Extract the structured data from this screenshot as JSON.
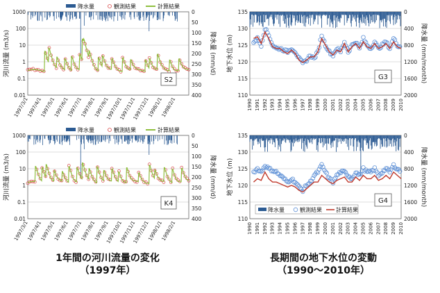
{
  "captions": {
    "left_line1": "1年間の河川流量の変化",
    "left_line2": "（1997年）",
    "right_line1": "長期間の地下水位の変動",
    "right_line2": "（1990～2010年）"
  },
  "colors": {
    "rain": "#2b5a92",
    "observed": "#d94a4a",
    "calc_flow": "#8fbf3f",
    "gw_observed": "#5c8fd6",
    "gw_calc": "#c0392b"
  },
  "chart_data": [
    {
      "id": "S2",
      "type": "line",
      "panel_label": "S2",
      "title": "",
      "ylabel": "河川流量 (m3/s)",
      "y2label": "降水量 (mm/d)",
      "ylim": [
        0.01,
        1000
      ],
      "yscale": "log",
      "yticks": [
        "1000",
        "100",
        "10",
        "1",
        "0.1",
        "0.01"
      ],
      "y2lim": [
        0,
        400
      ],
      "y2ticks": [
        "0",
        "50",
        "100",
        "150",
        "200",
        "250",
        "300",
        "350",
        "400"
      ],
      "xticks": [
        "1997/3/1",
        "1997/4/1",
        "1997/5/1",
        "1997/6/1",
        "1997/7/1",
        "1997/8/1",
        "1997/9/1",
        "1997/10/1",
        "1997/11/1",
        "1997/12/1",
        "1998/1/1",
        "1998/2/1"
      ],
      "legend": [
        "降水量",
        "観測結果",
        "計算結果"
      ],
      "base_flow": 0.3,
      "peaks": [
        {
          "month": 1.3,
          "value": 4
        },
        {
          "month": 1.6,
          "value": 6
        },
        {
          "month": 2.2,
          "value": 1.5
        },
        {
          "month": 2.8,
          "value": 1.2
        },
        {
          "month": 3.3,
          "value": 1.8
        },
        {
          "month": 3.9,
          "value": 2.5
        },
        {
          "month": 4.1,
          "value": 22
        },
        {
          "month": 4.2,
          "value": 10
        },
        {
          "month": 4.6,
          "value": 3
        },
        {
          "month": 5.3,
          "value": 1.5
        },
        {
          "month": 5.6,
          "value": 1.8
        },
        {
          "month": 6.3,
          "value": 1.2
        },
        {
          "month": 7.1,
          "value": 1.5
        },
        {
          "month": 7.7,
          "value": 1
        },
        {
          "month": 8.8,
          "value": 1
        },
        {
          "month": 9.1,
          "value": 1.2
        },
        {
          "month": 9.7,
          "value": 2.5
        },
        {
          "month": 10.6,
          "value": 1
        },
        {
          "month": 11.3,
          "value": 1.2
        }
      ]
    },
    {
      "id": "K4",
      "type": "line",
      "panel_label": "K4",
      "title": "",
      "ylabel": "河川流量 (m3/s)",
      "y2label": "降水量 (mm/d)",
      "ylim": [
        0.01,
        1000
      ],
      "yscale": "log",
      "yticks": [
        "1000",
        "100",
        "10",
        "1",
        "0.1",
        "0.01"
      ],
      "y2lim": [
        0,
        400
      ],
      "y2ticks": [
        "0",
        "50",
        "100",
        "150",
        "200",
        "250",
        "300",
        "350",
        "400"
      ],
      "xticks": [
        "1997/3/1",
        "1997/4/1",
        "1997/5/1",
        "1997/6/1",
        "1997/7/1",
        "1997/8/1",
        "1997/9/1",
        "1997/10/1",
        "1997/11/1",
        "1997/12/1",
        "1998/1/1",
        "1998/2/1"
      ],
      "legend": [
        "降水量",
        "観測結果",
        "計算結果"
      ],
      "base_flow": 1.5,
      "peaks": [
        {
          "month": 0.6,
          "value": 12
        },
        {
          "month": 1.1,
          "value": 10
        },
        {
          "month": 1.4,
          "value": 15
        },
        {
          "month": 2.0,
          "value": 6
        },
        {
          "month": 2.6,
          "value": 5
        },
        {
          "month": 3.1,
          "value": 12
        },
        {
          "month": 3.7,
          "value": 10
        },
        {
          "month": 4.1,
          "value": 20
        },
        {
          "month": 4.6,
          "value": 8
        },
        {
          "month": 5.2,
          "value": 12
        },
        {
          "month": 5.7,
          "value": 6
        },
        {
          "month": 6.3,
          "value": 8
        },
        {
          "month": 6.8,
          "value": 5
        },
        {
          "month": 7.4,
          "value": 10
        },
        {
          "month": 8.3,
          "value": 4
        },
        {
          "month": 9.1,
          "value": 15
        },
        {
          "month": 9.5,
          "value": 6
        },
        {
          "month": 10.2,
          "value": 10
        },
        {
          "month": 10.8,
          "value": 8
        },
        {
          "month": 11.5,
          "value": 9
        }
      ]
    },
    {
      "id": "G3",
      "type": "line",
      "panel_label": "G3",
      "title": "",
      "ylabel": "地下水位 (m)",
      "y2label": "降水量 (mm/month)",
      "ylim": [
        110,
        135
      ],
      "yticks": [
        "135",
        "130",
        "125",
        "120",
        "115",
        "110"
      ],
      "y2lim": [
        0,
        2000
      ],
      "y2ticks": [
        "0",
        "400",
        "800",
        "1200",
        "1600",
        "2000"
      ],
      "xticks": [
        "1990",
        "1991",
        "1992",
        "1993",
        "1994",
        "1995",
        "1996",
        "1997",
        "1998",
        "1999",
        "2000",
        "2001",
        "2002",
        "2003",
        "2004",
        "2005",
        "2006",
        "2007",
        "2008",
        "2009",
        "2010"
      ],
      "legend": [],
      "x": [
        1990.5,
        1991,
        1991.5,
        1992,
        1992.5,
        1993,
        1993.5,
        1994,
        1994.5,
        1995,
        1995.5,
        1996,
        1996.5,
        1997,
        1997.5,
        1998,
        1998.5,
        1999,
        1999.5,
        2000,
        2000.5,
        2001,
        2001.5,
        2002,
        2002.5,
        2003,
        2003.5,
        2004,
        2004.5,
        2005,
        2005.5,
        2006,
        2006.5,
        2007,
        2007.5,
        2008,
        2008.5,
        2009,
        2009.5,
        2010
      ],
      "observed": [
        126,
        127,
        125,
        130,
        128,
        125,
        124,
        124,
        123.5,
        123,
        124,
        123,
        121,
        119.5,
        120.5,
        122,
        121,
        123,
        128,
        125,
        123,
        122,
        124,
        123,
        126,
        123,
        125,
        126,
        124,
        127,
        125,
        124,
        126,
        124,
        125,
        126,
        124,
        127,
        125,
        124.5
      ],
      "calculated": [
        127,
        127.5,
        125.5,
        129,
        127,
        124.5,
        124,
        124,
        123,
        122.5,
        123.5,
        122.5,
        120.5,
        119.8,
        120.5,
        121.5,
        121.5,
        123,
        127,
        125,
        123,
        122,
        123.5,
        123,
        125.5,
        123,
        124.5,
        125.5,
        124,
        126,
        124.5,
        124,
        125.5,
        124,
        124.5,
        125.5,
        124,
        126,
        124.5,
        124
      ]
    },
    {
      "id": "G4",
      "type": "line",
      "panel_label": "G4",
      "title": "",
      "ylabel": "地下水位 (m)",
      "y2label": "降水量 (mm/month)",
      "ylim": [
        110,
        135
      ],
      "yticks": [
        "135",
        "130",
        "125",
        "120",
        "115",
        "110"
      ],
      "y2lim": [
        0,
        2000
      ],
      "y2ticks": [
        "0",
        "400",
        "800",
        "1200",
        "1600",
        "2000"
      ],
      "xticks": [
        "1990",
        "1991",
        "1992",
        "1993",
        "1994",
        "1995",
        "1996",
        "1997",
        "1998",
        "1999",
        "2000",
        "2001",
        "2002",
        "2003",
        "2004",
        "2005",
        "2006",
        "2007",
        "2008",
        "2009",
        "2010"
      ],
      "legend": [
        "降水量",
        "観測結果",
        "計算結果"
      ],
      "x": [
        1990.5,
        1991,
        1991.5,
        1992,
        1992.5,
        1993,
        1993.5,
        1994,
        1994.5,
        1995,
        1995.5,
        1996,
        1996.5,
        1997,
        1997.5,
        1998,
        1998.5,
        1999,
        1999.5,
        2000,
        2000.5,
        2001,
        2001.5,
        2002,
        2002.5,
        2003,
        2003.5,
        2004,
        2004.5,
        2005,
        2005.5,
        2006,
        2006.5,
        2007,
        2007.5,
        2008,
        2008.5,
        2009,
        2009.5,
        2010
      ],
      "observed": [
        124,
        125,
        124,
        126,
        125,
        124.5,
        124,
        123,
        122,
        121,
        122,
        121,
        119.5,
        118.5,
        120,
        121,
        123,
        124,
        126,
        124,
        122,
        121,
        123,
        124,
        124,
        123,
        122,
        124,
        123,
        125,
        124,
        124,
        125,
        123,
        124,
        125,
        124,
        126,
        125,
        124
      ],
      "calculated": [
        121,
        122,
        121.5,
        124,
        122,
        121,
        121,
        120.5,
        120,
        119.5,
        120,
        119.5,
        118.5,
        118,
        119,
        120,
        121,
        121,
        123,
        122,
        121,
        120.5,
        121.5,
        122,
        122.5,
        121,
        121,
        122.5,
        121.5,
        123,
        122,
        122,
        123,
        121.5,
        122,
        123,
        122,
        124,
        123,
        122
      ]
    }
  ]
}
